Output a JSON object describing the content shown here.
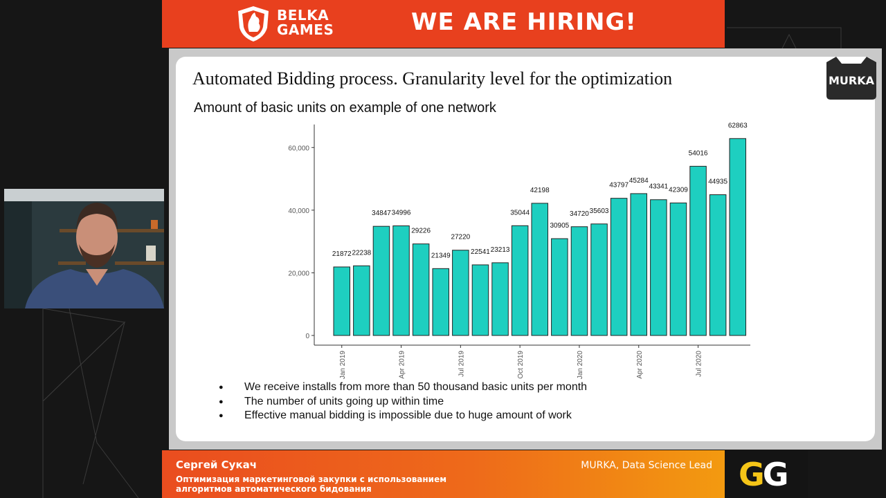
{
  "banner": {
    "brand": "BELKA GAMES",
    "brand_line1": "BELKA",
    "brand_line2": "GAMES",
    "headline": "WE ARE HIRING!"
  },
  "slide": {
    "badge": "MURKA",
    "title": "Automated Bidding process. Granularity level for the optimization",
    "subtitle": "Amount of basic units on example of one network",
    "bullets": [
      "We receive installs from more than 50 thousand basic units per month",
      "The number of units going up within time",
      "Effective manual bidding is impossible due to huge amount of work"
    ]
  },
  "chart_data": {
    "type": "bar",
    "title": "",
    "xlabel": "",
    "ylabel": "",
    "ylim": [
      0,
      66000
    ],
    "y_ticks": [
      "0",
      "20,000",
      "40,000",
      "60,000"
    ],
    "y_tick_values": [
      0,
      20000,
      40000,
      60000
    ],
    "x_tick_labels": [
      {
        "label": "Jan 2019",
        "index": 0
      },
      {
        "label": "Apr 2019",
        "index": 3
      },
      {
        "label": "Jul 2019",
        "index": 6
      },
      {
        "label": "Oct 2019",
        "index": 9
      },
      {
        "label": "Jan 2020",
        "index": 12
      },
      {
        "label": "Apr 2020",
        "index": 15
      },
      {
        "label": "Jul 2020",
        "index": 18
      }
    ],
    "values": [
      21872,
      22238,
      34847,
      34996,
      29226,
      21349,
      27220,
      22541,
      23213,
      35044,
      42198,
      30905,
      34720,
      35603,
      43797,
      45284,
      43341,
      42309,
      54016,
      44935,
      62863
    ],
    "grid": false,
    "legend": "none",
    "bar_color": "#1ecfc0"
  },
  "presenter": {
    "name": "Сергей Сукач",
    "talk_line1": "Оптимизация маркетинговой закупки с использованием",
    "talk_line2": "алгоритмов автоматического бидования",
    "role": "MURKA,  Data Science Lead"
  },
  "conference_logo": {
    "text": "GG",
    "color_primary": "#f5c518",
    "color_secondary": "#ffffff"
  },
  "colors": {
    "banner": "#e8401e",
    "bar": "#1ecfc0"
  }
}
